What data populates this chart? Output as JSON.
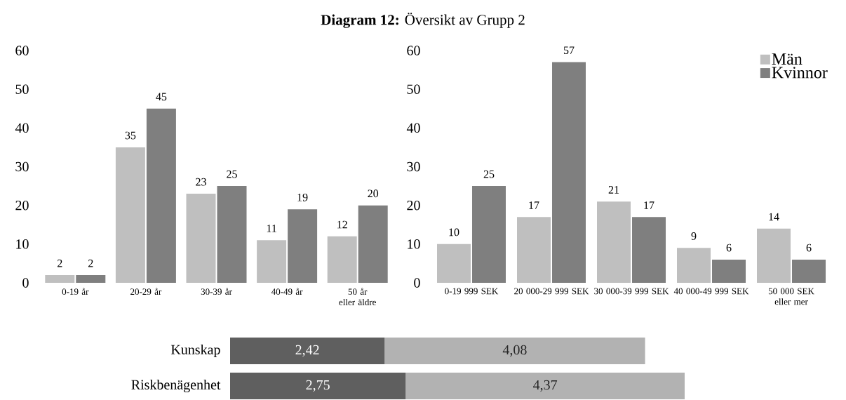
{
  "chart_data": [
    {
      "type": "bar",
      "title": "**Diagram 12:** Översikt av Grupp 2",
      "categories": [
        "0-19 år",
        "20-29 år",
        "30-39 år",
        "40-49 år",
        "50 år eller äldre"
      ],
      "series": [
        {
          "color": "#bfbfbf",
          "values": [
            2,
            35,
            23,
            11,
            12
          ]
        },
        {
          "color": "#7f7f7f",
          "values": [
            2,
            45,
            25,
            19,
            20
          ]
        }
      ],
      "ylim": [
        0,
        60
      ],
      "yticks": [
        0,
        10,
        20,
        30,
        40,
        50,
        60
      ],
      "data_labels": true
    },
    {
      "type": "bar",
      "categories": [
        "0-19 999 SEK",
        "20 000-29 999 SEK",
        "30 000-39 999 SEK",
        "40 000-49 999 SEK",
        "50 000 SEK eller mer"
      ],
      "series": [
        {
          "name": "Män",
          "color": "#bfbfbf",
          "values": [
            10,
            17,
            21,
            9,
            14
          ]
        },
        {
          "name": "Kvinnor",
          "color": "#7f7f7f",
          "values": [
            25,
            57,
            17,
            6,
            6
          ]
        }
      ],
      "ylim": [
        0,
        60
      ],
      "yticks": [
        0,
        10,
        20,
        30,
        40,
        50,
        60
      ],
      "data_labels": true,
      "legend": "top right"
    },
    {
      "type": "bar",
      "orientation": "horizontal",
      "stacked": true,
      "categories": [
        "Kunskap",
        "Riskbenägenhet"
      ],
      "series": [
        {
          "color": "#5f5f5f",
          "values": [
            2.42,
            2.75
          ],
          "value_labels": [
            "2,42",
            "2,75"
          ]
        },
        {
          "color": "#b2b2b2",
          "values": [
            4.08,
            4.37
          ],
          "value_labels": [
            "4,08",
            "4,37"
          ]
        }
      ],
      "xlim": [
        0,
        7.12
      ]
    }
  ]
}
